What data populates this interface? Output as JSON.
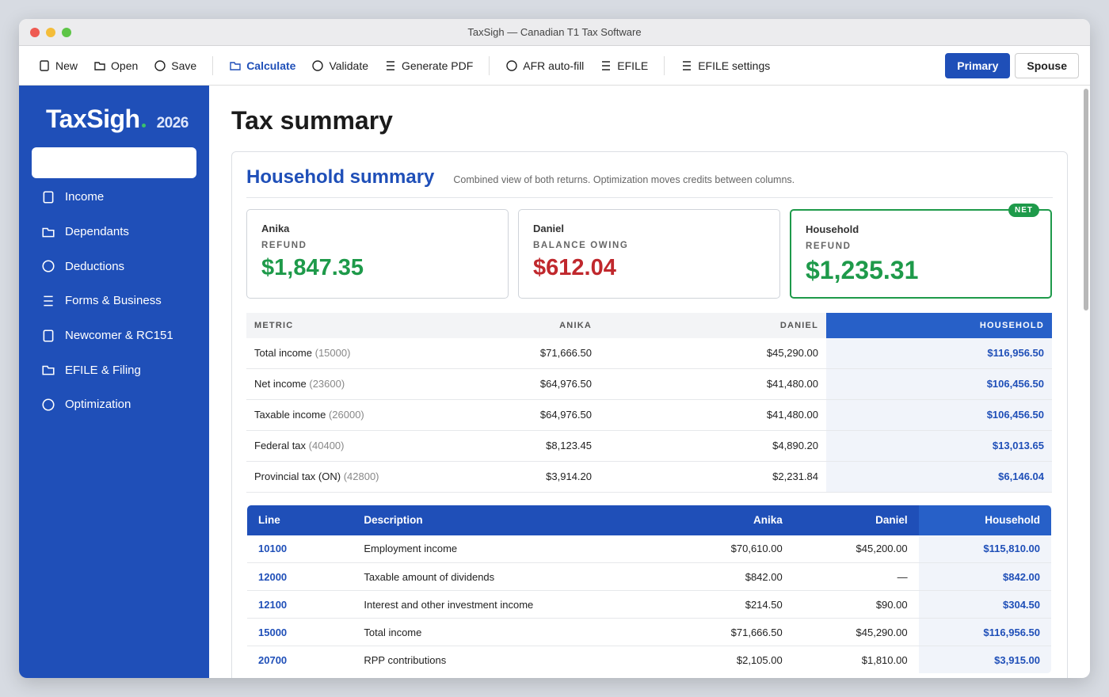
{
  "window": {
    "title": "TaxSigh — Canadian T1 Tax Software"
  },
  "toolbar": {
    "groups": [
      [
        "New",
        "Open",
        "Save"
      ],
      [
        "Calculate",
        "Validate",
        "Generate PDF"
      ],
      [
        "AFR auto-fill",
        "EFILE"
      ],
      [
        "EFILE settings"
      ]
    ],
    "toggle": [
      "Primary",
      "Spouse"
    ]
  },
  "sidebar": {
    "brand": "TaxSigh",
    "year": "2026",
    "nav": [
      "Income",
      "Dependants",
      "Deductions",
      "Forms & Business",
      "Newcomer & RC151",
      "EFILE & Filing",
      "Optimization"
    ]
  },
  "main": {
    "title": "Tax summary"
  },
  "household": {
    "title": "Household summary",
    "subtitle": "Combined view of both returns. Optimization moves credits between columns.",
    "cards": [
      {
        "name": "Anika",
        "status": "REFUND",
        "amount": "$1,847.35"
      },
      {
        "name": "Daniel",
        "status": "BALANCE OWING",
        "amount": "$612.04"
      },
      {
        "name": "Household",
        "status": "REFUND",
        "amount": "$1,235.31",
        "badge": "NET"
      }
    ],
    "metrics": {
      "headers": [
        "METRIC",
        "ANIKA",
        "DANIEL",
        "HOUSEHOLD"
      ],
      "rows": [
        [
          "Total income",
          "(15000)",
          "$71,666.50",
          "$45,290.00",
          "$116,956.50"
        ],
        [
          "Net income",
          "(23600)",
          "$64,976.50",
          "$41,480.00",
          "$106,456.50"
        ],
        [
          "Taxable income",
          "(26000)",
          "$64,976.50",
          "$41,480.00",
          "$106,456.50"
        ],
        [
          "Federal tax",
          "(40400)",
          "$8,123.45",
          "$4,890.20",
          "$13,013.65"
        ],
        [
          "Provincial tax (ON)",
          "(42800)",
          "$3,914.20",
          "$2,231.84",
          "$6,146.04"
        ]
      ]
    },
    "lines": {
      "headers": [
        "Line",
        "Description",
        "Anika",
        "Daniel",
        "Household"
      ],
      "rows": [
        [
          "10100",
          "Employment income",
          "$70,610.00",
          "$45,200.00",
          "$115,810.00"
        ],
        [
          "12000",
          "Taxable amount of dividends",
          "$842.00",
          "—",
          "$842.00"
        ],
        [
          "12100",
          "Interest and other investment income",
          "$214.50",
          "$90.00",
          "$304.50"
        ],
        [
          "15000",
          "Total income",
          "$71,666.50",
          "$45,290.00",
          "$116,956.50"
        ],
        [
          "20700",
          "RPP contributions",
          "$2,105.00",
          "$1,810.00",
          "$3,915.00"
        ]
      ]
    }
  }
}
